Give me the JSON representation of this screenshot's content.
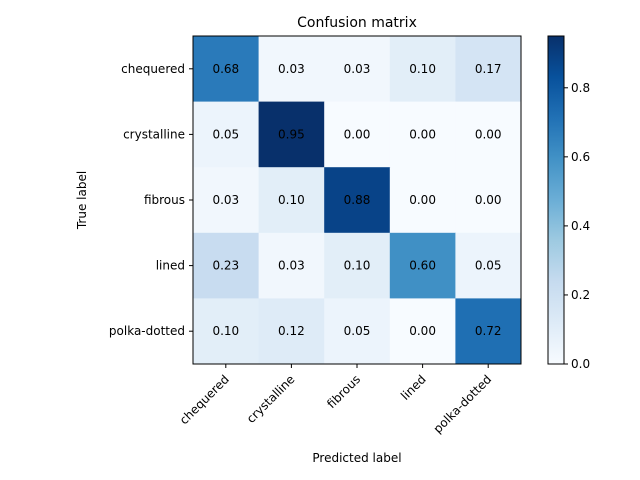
{
  "chart_data": {
    "type": "heatmap",
    "title": "Confusion matrix",
    "xlabel": "Predicted label",
    "ylabel": "True label",
    "x_categories": [
      "chequered",
      "crystalline",
      "fibrous",
      "lined",
      "polka-dotted"
    ],
    "y_categories": [
      "chequered",
      "crystalline",
      "fibrous",
      "lined",
      "polka-dotted"
    ],
    "values": [
      [
        0.68,
        0.03,
        0.03,
        0.1,
        0.17
      ],
      [
        0.05,
        0.95,
        0.0,
        0.0,
        0.0
      ],
      [
        0.03,
        0.1,
        0.88,
        0.0,
        0.0
      ],
      [
        0.23,
        0.03,
        0.1,
        0.6,
        0.05
      ],
      [
        0.1,
        0.12,
        0.05,
        0.0,
        0.72
      ]
    ],
    "cell_labels": [
      [
        "0.68",
        "0.03",
        "0.03",
        "0.10",
        "0.17"
      ],
      [
        "0.05",
        "0.95",
        "0.00",
        "0.00",
        "0.00"
      ],
      [
        "0.03",
        "0.10",
        "0.88",
        "0.00",
        "0.00"
      ],
      [
        "0.23",
        "0.03",
        "0.10",
        "0.60",
        "0.05"
      ],
      [
        "0.10",
        "0.12",
        "0.05",
        "0.00",
        "0.72"
      ]
    ],
    "colormap": "Blues",
    "vmin": 0.0,
    "vmax": 0.95,
    "colorbar_ticks": [
      "0.0",
      "0.2",
      "0.4",
      "0.6",
      "0.8"
    ],
    "colorbar_tick_values": [
      0.0,
      0.2,
      0.4,
      0.6,
      0.8
    ],
    "grid": false
  }
}
